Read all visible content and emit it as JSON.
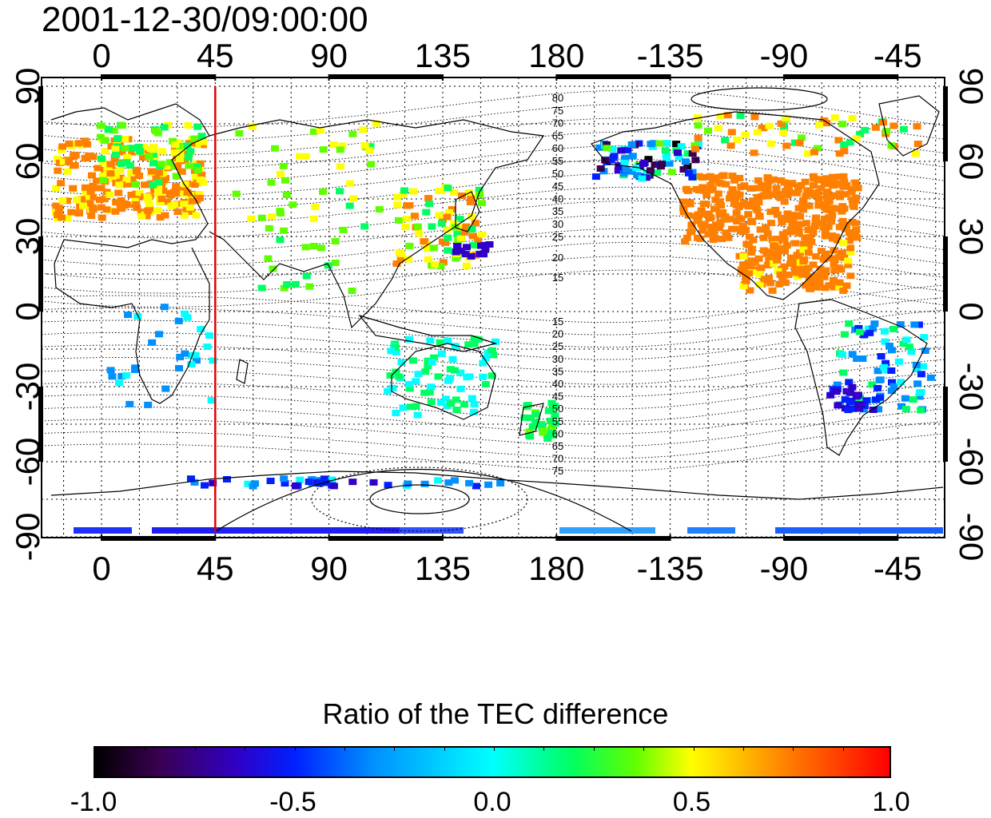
{
  "timestamp": "2001-12-30/09:00:00",
  "map": {
    "top_axis_labels": [
      "0",
      "45",
      "90",
      "135",
      "180",
      "-135",
      "-90",
      "-45"
    ],
    "bottom_axis_labels": [
      "0",
      "45",
      "90",
      "135",
      "180",
      "-135",
      "-90",
      "-45"
    ],
    "left_axis_labels": [
      "90",
      "60",
      "30",
      "0",
      "-30",
      "-60",
      "-90"
    ],
    "right_axis_labels": [
      "90",
      "60",
      "30",
      "0",
      "-30",
      "-60",
      "-90"
    ],
    "north_contour_labels": [
      "80",
      "75",
      "70",
      "65",
      "60",
      "55",
      "50",
      "45",
      "40",
      "35",
      "30",
      "25",
      "20",
      "15"
    ],
    "south_contour_labels": [
      "15",
      "20",
      "25",
      "30",
      "35",
      "40",
      "45",
      "50",
      "55",
      "60",
      "65",
      "70",
      "75"
    ],
    "marker_longitude": 45,
    "marker_color": "#e00000"
  },
  "colorbar": {
    "title": "Ratio of the TEC difference",
    "tick_labels": [
      "-1.0",
      "-0.5",
      "0.0",
      "0.5",
      "1.0"
    ],
    "range": [
      -1.0,
      1.0
    ]
  }
}
